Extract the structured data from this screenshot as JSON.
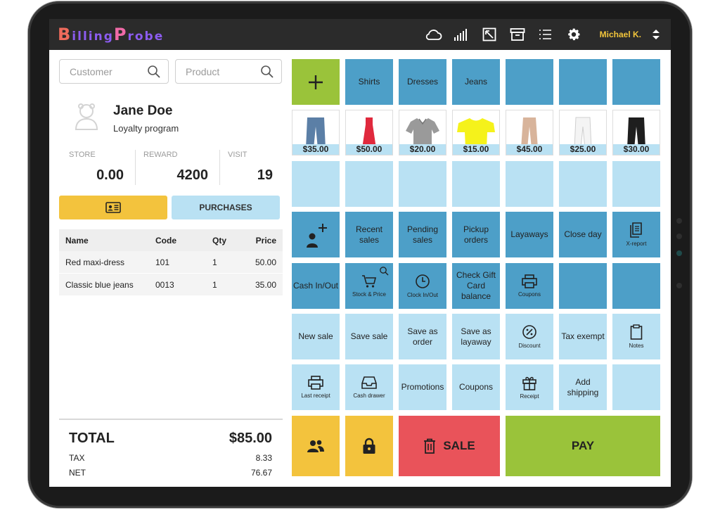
{
  "app": {
    "logo_text": "BillingProbe",
    "user": "Michael K.",
    "icons": [
      "cloud-icon",
      "signal-icon",
      "resize-icon",
      "archive-icon",
      "list-icon",
      "gear-icon",
      "chevron-updown-icon"
    ]
  },
  "search": {
    "customer_placeholder": "Customer",
    "product_placeholder": "Product"
  },
  "customer": {
    "name": "Jane Doe",
    "program": "Loyalty program",
    "stats": [
      {
        "label": "STORE",
        "value": "0.00"
      },
      {
        "label": "REWARD",
        "value": "4200"
      },
      {
        "label": "VISIT",
        "value": "19"
      }
    ]
  },
  "buttons": {
    "purchases": "PURCHASES"
  },
  "cart": {
    "headers": {
      "name": "Name",
      "code": "Code",
      "qty": "Qty",
      "price": "Price"
    },
    "rows": [
      {
        "name": "Red maxi-dress",
        "code": "101",
        "qty": "1",
        "price": "50.00"
      },
      {
        "name": "Classic blue jeans",
        "code": "0013",
        "qty": "1",
        "price": "35.00"
      }
    ]
  },
  "totals": {
    "total_label": "TOTAL",
    "total_value": "$85.00",
    "tax_label": "TAX",
    "tax_value": "8.33",
    "net_label": "NET",
    "net_value": "76.67"
  },
  "categories": [
    "Shirts",
    "Dresses",
    "Jeans"
  ],
  "products": [
    {
      "price": "$35.00",
      "kind": "jeans",
      "color": "#5b7fa6"
    },
    {
      "price": "$50.00",
      "kind": "dress",
      "color": "#e0293d"
    },
    {
      "price": "$20.00",
      "kind": "shirt",
      "color": "#9a9a9a"
    },
    {
      "price": "$15.00",
      "kind": "tee",
      "color": "#f5f21b"
    },
    {
      "price": "$45.00",
      "kind": "pants",
      "color": "#d8b49b"
    },
    {
      "price": "$25.00",
      "kind": "pants",
      "color": "#f2f2f2"
    },
    {
      "price": "$30.00",
      "kind": "jeans",
      "color": "#1e1e1e"
    }
  ],
  "actions_row1": {
    "recent_sales": "Recent sales",
    "pending_sales": "Pending sales",
    "pickup_orders": "Pickup orders",
    "layaways": "Layaways",
    "close_day": "Close day",
    "x_report": "X-report"
  },
  "actions_row2": {
    "cash_inout": "Cash In/Out",
    "stock_price": "Stock & Price",
    "clock_inout": "Clock In/Out",
    "check_gift": "Check Gift Card balance",
    "coupons_sub": "Coupons"
  },
  "actions_row3": {
    "new_sale": "New sale",
    "save_sale": "Save sale",
    "save_order": "Save as order",
    "save_layaway": "Save as layaway",
    "discount": "Discount",
    "tax_exempt": "Tax exempt",
    "notes": "Notes"
  },
  "actions_row4": {
    "last_receipt": "Last receipt",
    "cash_drawer": "Cash drawer",
    "promotions": "Promotions",
    "coupons": "Coupons",
    "receipt": "Receipt",
    "add_shipping": "Add shipping"
  },
  "bottom": {
    "sale": "SALE",
    "pay": "PAY"
  },
  "colors": {
    "dark_tile": "#4d9fc8",
    "light_tile": "#b9e1f3",
    "green": "#9ac33a",
    "yellow": "#f3c33d",
    "red": "#e9535a"
  }
}
